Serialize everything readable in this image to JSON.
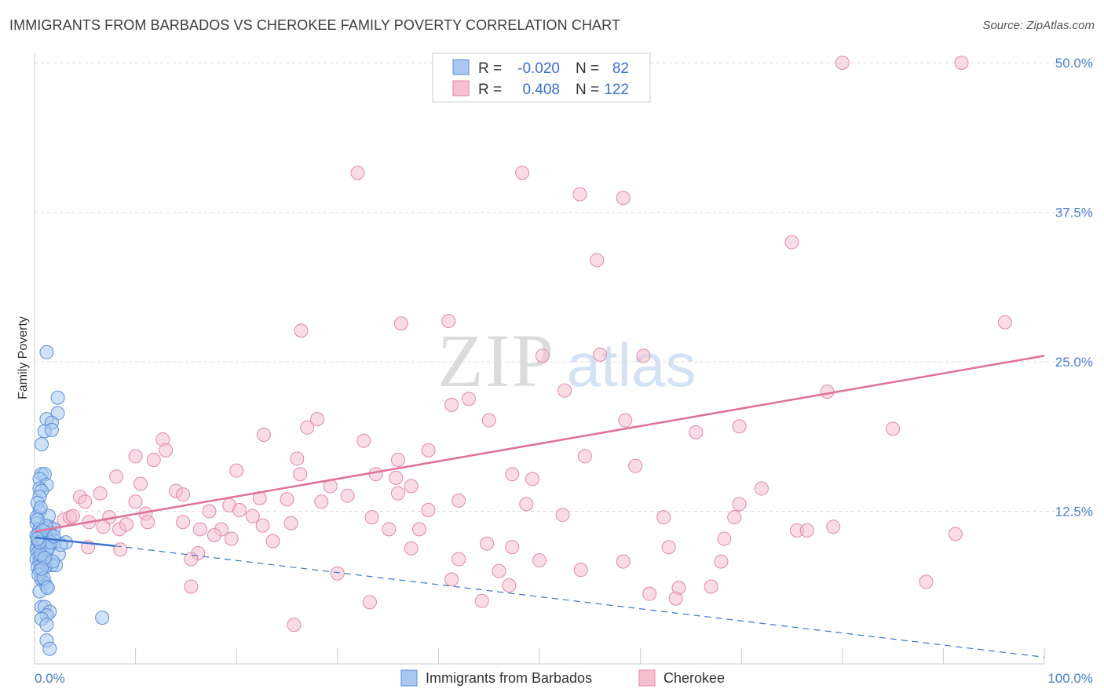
{
  "title": "IMMIGRANTS FROM BARBADOS VS CHEROKEE FAMILY POVERTY CORRELATION CHART",
  "source": "Source: ZipAtlas.com",
  "watermark": {
    "zip": "ZIP",
    "atlas": "atlas"
  },
  "colors": {
    "blue_fill": "#a8c8f0",
    "blue_stroke": "#5b8fd6",
    "blue_line": "#3a74d0",
    "pink_fill": "#f6bfd0",
    "pink_stroke": "#e08aa8",
    "pink_line": "#e0709a",
    "grid": "#dddddd",
    "tick_label": "#4a7fd4"
  },
  "legend": {
    "rows": [
      {
        "r_label": "R =",
        "r_value": "-0.020",
        "n_label": "N =",
        "n_value": "82"
      },
      {
        "r_label": "R =",
        "r_value": "0.408",
        "n_label": "N =",
        "n_value": "122"
      }
    ]
  },
  "chart_data": {
    "type": "scatter",
    "title": "IMMIGRANTS FROM BARBADOS VS CHEROKEE FAMILY POVERTY CORRELATION CHART",
    "xlabel": "",
    "ylabel": "Family Poverty",
    "xlim": [
      0,
      100
    ],
    "ylim": [
      0,
      50
    ],
    "x_tick_labels": [
      "0.0%",
      "100.0%"
    ],
    "y_ticks": [
      {
        "value": 12.5,
        "label": "12.5%"
      },
      {
        "value": 25.0,
        "label": "25.0%"
      },
      {
        "value": 37.5,
        "label": "37.5%"
      },
      {
        "value": 50.0,
        "label": "50.0%"
      }
    ],
    "legend_position": "top-center",
    "series": [
      {
        "name": "Immigrants from Barbados",
        "R": -0.02,
        "N": 82,
        "trend": {
          "solid": [
            [
              0,
              10.3
            ],
            [
              8,
              9.6
            ]
          ],
          "dashed": [
            [
              8,
              9.6
            ],
            [
              100,
              0.3
            ]
          ]
        },
        "points": [
          [
            1.2,
            25.8
          ],
          [
            2.3,
            22.0
          ],
          [
            2.3,
            20.7
          ],
          [
            1.2,
            20.2
          ],
          [
            1.7,
            19.9
          ],
          [
            1.0,
            19.2
          ],
          [
            1.7,
            19.3
          ],
          [
            0.7,
            18.1
          ],
          [
            0.7,
            15.6
          ],
          [
            1.0,
            15.6
          ],
          [
            0.5,
            15.2
          ],
          [
            1.2,
            14.7
          ],
          [
            0.5,
            14.4
          ],
          [
            0.7,
            14.2
          ],
          [
            0.5,
            13.7
          ],
          [
            0.3,
            13.2
          ],
          [
            0.5,
            12.5
          ],
          [
            0.2,
            12.0
          ],
          [
            0.2,
            11.5
          ],
          [
            1.5,
            11.2
          ],
          [
            1.9,
            11.0
          ],
          [
            0.5,
            11.0
          ],
          [
            1.0,
            10.8
          ],
          [
            1.5,
            10.7
          ],
          [
            0.2,
            10.5
          ],
          [
            0.7,
            10.3
          ],
          [
            1.2,
            10.2
          ],
          [
            0.3,
            10.0
          ],
          [
            2.0,
            10.0
          ],
          [
            3.1,
            9.9
          ],
          [
            0.3,
            9.7
          ],
          [
            0.7,
            9.6
          ],
          [
            1.0,
            9.8
          ],
          [
            1.4,
            9.5
          ],
          [
            0.2,
            9.3
          ],
          [
            0.5,
            9.2
          ],
          [
            1.2,
            9.2
          ],
          [
            0.3,
            9.0
          ],
          [
            2.4,
            8.9
          ],
          [
            0.7,
            8.7
          ],
          [
            0.2,
            8.5
          ],
          [
            0.5,
            8.3
          ],
          [
            1.2,
            8.2
          ],
          [
            0.7,
            8.0
          ],
          [
            1.7,
            8.0
          ],
          [
            2.1,
            8.0
          ],
          [
            0.3,
            7.8
          ],
          [
            1.0,
            7.8
          ],
          [
            0.5,
            7.5
          ],
          [
            0.7,
            6.8
          ],
          [
            1.0,
            6.5
          ],
          [
            1.2,
            6.2
          ],
          [
            0.5,
            5.8
          ],
          [
            0.7,
            4.5
          ],
          [
            1.0,
            4.5
          ],
          [
            1.5,
            4.1
          ],
          [
            1.2,
            3.8
          ],
          [
            0.7,
            3.5
          ],
          [
            6.7,
            3.6
          ],
          [
            1.2,
            3.0
          ],
          [
            1.2,
            1.7
          ],
          [
            1.5,
            1.0
          ],
          [
            0.4,
            10.6
          ],
          [
            0.9,
            10.1
          ],
          [
            1.3,
            9.4
          ],
          [
            0.6,
            8.9
          ],
          [
            1.8,
            8.3
          ],
          [
            0.4,
            7.2
          ],
          [
            0.9,
            6.9
          ],
          [
            1.4,
            12.1
          ],
          [
            0.6,
            12.8
          ],
          [
            1.1,
            11.3
          ],
          [
            0.3,
            11.8
          ],
          [
            2.6,
            9.7
          ],
          [
            0.8,
            10.9
          ],
          [
            1.6,
            9.9
          ],
          [
            0.5,
            9.9
          ],
          [
            1.0,
            8.6
          ],
          [
            0.3,
            10.2
          ],
          [
            1.9,
            10.4
          ],
          [
            0.7,
            7.7
          ],
          [
            1.3,
            6.1
          ]
        ]
      },
      {
        "name": "Cherokee",
        "R": 0.408,
        "N": 122,
        "trend": {
          "solid": [
            [
              0,
              10.8
            ],
            [
              100,
              25.5
            ]
          ]
        },
        "points": [
          [
            80.0,
            50.0
          ],
          [
            91.8,
            50.0
          ],
          [
            32.0,
            40.8
          ],
          [
            48.3,
            40.8
          ],
          [
            54.0,
            39.0
          ],
          [
            58.3,
            38.7
          ],
          [
            75.0,
            35.0
          ],
          [
            55.7,
            33.5
          ],
          [
            26.4,
            27.6
          ],
          [
            36.3,
            28.2
          ],
          [
            41.0,
            28.4
          ],
          [
            96.1,
            28.3
          ],
          [
            50.3,
            25.5
          ],
          [
            56.0,
            25.6
          ],
          [
            60.3,
            25.5
          ],
          [
            52.5,
            22.6
          ],
          [
            78.5,
            22.5
          ],
          [
            41.3,
            21.4
          ],
          [
            43.0,
            21.9
          ],
          [
            45.0,
            20.1
          ],
          [
            28.0,
            20.2
          ],
          [
            58.5,
            20.1
          ],
          [
            69.8,
            19.6
          ],
          [
            27.0,
            19.5
          ],
          [
            85.0,
            19.4
          ],
          [
            65.5,
            19.1
          ],
          [
            12.7,
            18.5
          ],
          [
            22.7,
            18.9
          ],
          [
            32.6,
            18.4
          ],
          [
            39.0,
            17.6
          ],
          [
            13.0,
            17.6
          ],
          [
            10.0,
            17.1
          ],
          [
            26.0,
            16.9
          ],
          [
            36.0,
            16.8
          ],
          [
            54.5,
            17.1
          ],
          [
            11.8,
            16.8
          ],
          [
            59.5,
            16.3
          ],
          [
            20.0,
            15.9
          ],
          [
            26.3,
            15.6
          ],
          [
            33.8,
            15.6
          ],
          [
            47.3,
            15.6
          ],
          [
            35.8,
            15.3
          ],
          [
            49.3,
            15.2
          ],
          [
            8.1,
            15.4
          ],
          [
            37.3,
            14.6
          ],
          [
            29.3,
            14.6
          ],
          [
            36.0,
            14.0
          ],
          [
            10.5,
            14.8
          ],
          [
            14.0,
            14.2
          ],
          [
            31.0,
            13.8
          ],
          [
            14.7,
            13.9
          ],
          [
            6.5,
            14.0
          ],
          [
            22.3,
            13.6
          ],
          [
            25.0,
            13.5
          ],
          [
            28.4,
            13.3
          ],
          [
            42.0,
            13.4
          ],
          [
            48.7,
            13.1
          ],
          [
            4.5,
            13.7
          ],
          [
            5.0,
            13.3
          ],
          [
            10.0,
            13.3
          ],
          [
            19.3,
            13.0
          ],
          [
            20.3,
            12.6
          ],
          [
            17.3,
            12.5
          ],
          [
            33.4,
            12.0
          ],
          [
            39.0,
            12.6
          ],
          [
            52.3,
            12.2
          ],
          [
            62.3,
            12.0
          ],
          [
            69.3,
            12.0
          ],
          [
            69.8,
            13.1
          ],
          [
            2.9,
            11.8
          ],
          [
            3.5,
            12.0
          ],
          [
            3.8,
            12.1
          ],
          [
            7.4,
            12.0
          ],
          [
            11.0,
            12.3
          ],
          [
            21.6,
            12.1
          ],
          [
            22.6,
            11.3
          ],
          [
            16.4,
            11.0
          ],
          [
            18.5,
            11.0
          ],
          [
            11.2,
            11.6
          ],
          [
            14.7,
            11.6
          ],
          [
            5.4,
            11.6
          ],
          [
            6.8,
            11.2
          ],
          [
            8.4,
            11.0
          ],
          [
            9.1,
            11.4
          ],
          [
            25.4,
            11.5
          ],
          [
            35.1,
            11.0
          ],
          [
            38.1,
            11.0
          ],
          [
            75.5,
            10.9
          ],
          [
            76.5,
            10.9
          ],
          [
            91.2,
            10.6
          ],
          [
            17.8,
            10.5
          ],
          [
            19.5,
            10.2
          ],
          [
            23.6,
            10.0
          ],
          [
            44.8,
            9.8
          ],
          [
            47.3,
            9.5
          ],
          [
            62.8,
            9.5
          ],
          [
            68.3,
            10.2
          ],
          [
            5.3,
            9.5
          ],
          [
            8.5,
            9.3
          ],
          [
            16.2,
            9.0
          ],
          [
            15.5,
            8.5
          ],
          [
            37.3,
            9.4
          ],
          [
            42.0,
            8.5
          ],
          [
            58.3,
            8.3
          ],
          [
            68.0,
            8.3
          ],
          [
            50.0,
            8.4
          ],
          [
            46.0,
            7.5
          ],
          [
            30.0,
            7.3
          ],
          [
            63.8,
            6.1
          ],
          [
            67.0,
            6.2
          ],
          [
            15.5,
            6.2
          ],
          [
            47.0,
            6.3
          ],
          [
            44.3,
            5.0
          ],
          [
            63.5,
            5.2
          ],
          [
            25.7,
            3.0
          ],
          [
            41.3,
            6.8
          ],
          [
            54.1,
            7.6
          ],
          [
            60.9,
            5.6
          ],
          [
            33.2,
            4.9
          ],
          [
            72.0,
            14.4
          ],
          [
            79.1,
            11.2
          ],
          [
            88.3,
            6.6
          ]
        ]
      }
    ]
  },
  "bottom_legend": {
    "items": [
      {
        "label": "Immigrants from Barbados"
      },
      {
        "label": "Cherokee"
      }
    ]
  }
}
